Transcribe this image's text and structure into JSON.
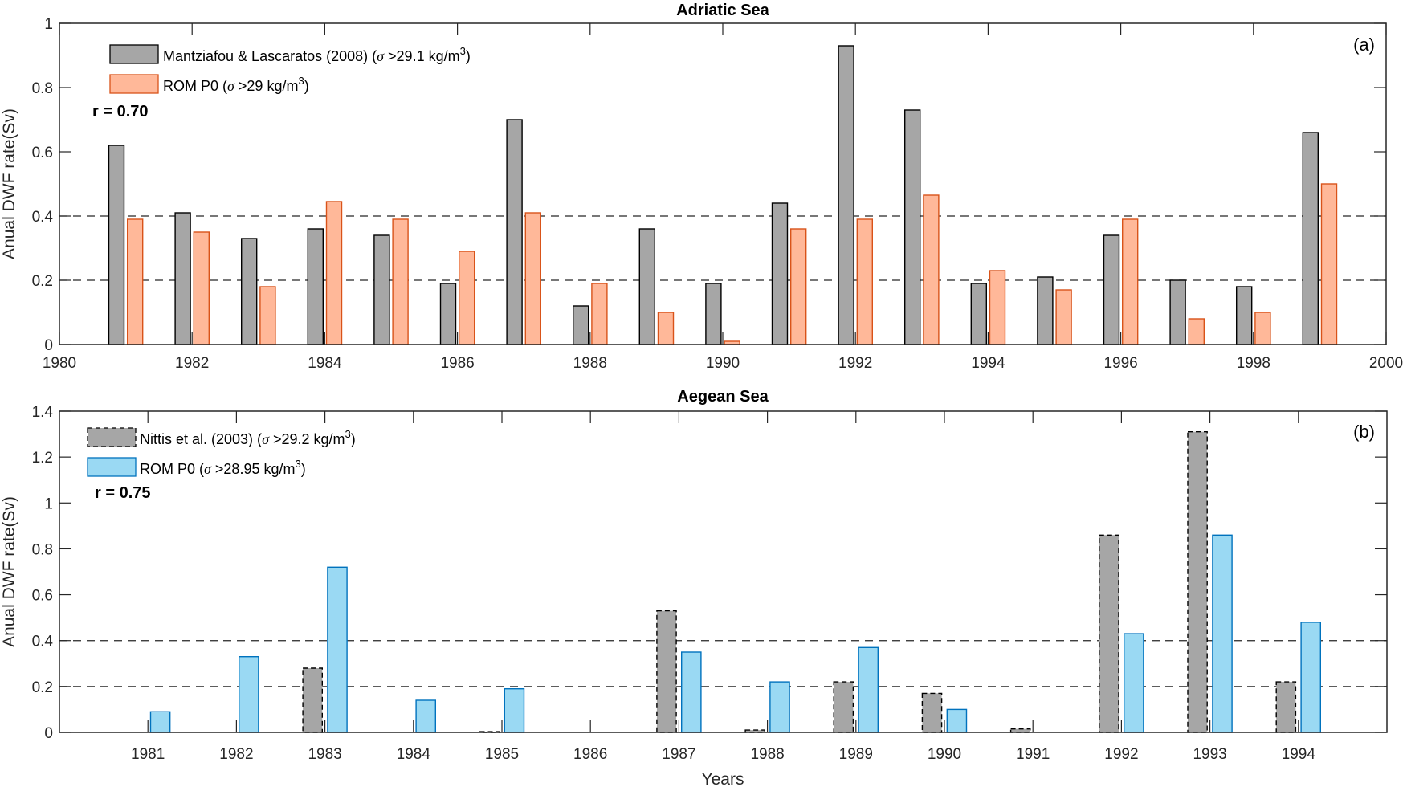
{
  "chart_data": [
    {
      "type": "bar",
      "panel_label": "(a)",
      "title": "Adriatic Sea",
      "xlabel": "",
      "ylabel": "Anual DWF rate(Sv)",
      "xlim": [
        1980,
        2000
      ],
      "ylim": [
        0,
        1
      ],
      "xticks": [
        1980,
        1982,
        1984,
        1986,
        1988,
        1990,
        1992,
        1994,
        1996,
        1998,
        2000
      ],
      "yticks": [
        0,
        0.2,
        0.4,
        0.6,
        0.8,
        1
      ],
      "ytick_labels": [
        "0",
        "0.2",
        "0.4",
        "0.6",
        "0.8",
        "1"
      ],
      "reference_lines": [
        0.2,
        0.4
      ],
      "correlation_text": "r = 0.70",
      "legend_position": "top-left",
      "categories": [
        1981,
        1982,
        1983,
        1984,
        1985,
        1986,
        1987,
        1988,
        1989,
        1990,
        1991,
        1992,
        1993,
        1994,
        1995,
        1996,
        1997,
        1998,
        1999
      ],
      "series": [
        {
          "name": "Mantziafou & Lascaratos (2008) (σ >29.1 kg/m³)",
          "label_main": "Mantziafou & Lascaratos (2008) (",
          "label_sigma": "σ",
          "label_rest": " >29.1 kg/m",
          "label_sup": "3",
          "label_end": ")",
          "fill": "#a6a6a6",
          "stroke": "#000000",
          "dashed": false,
          "values": [
            0.62,
            0.41,
            0.33,
            0.36,
            0.34,
            0.19,
            0.7,
            0.12,
            0.36,
            0.19,
            0.44,
            0.93,
            0.73,
            0.19,
            0.21,
            0.34,
            0.2,
            0.18,
            0.66
          ]
        },
        {
          "name": "ROM P0 (σ >29 kg/m³)",
          "label_main": "ROM P0 (",
          "label_sigma": "σ",
          "label_rest": " >29 kg/m",
          "label_sup": "3",
          "label_end": ")",
          "fill": "#ffb899",
          "stroke": "#d95319",
          "dashed": false,
          "values": [
            0.39,
            0.35,
            0.18,
            0.445,
            0.39,
            0.29,
            0.41,
            0.19,
            0.1,
            0.01,
            0.36,
            0.39,
            0.465,
            0.23,
            0.17,
            0.39,
            0.08,
            0.1,
            0.5
          ]
        }
      ]
    },
    {
      "type": "bar",
      "panel_label": "(b)",
      "title": "Aegean Sea",
      "xlabel": "Years",
      "ylabel": "Anual DWF rate(Sv)",
      "xlim": [
        1980,
        1995
      ],
      "ylim": [
        0,
        1.4
      ],
      "xticks": [
        1981,
        1982,
        1983,
        1984,
        1985,
        1986,
        1987,
        1988,
        1989,
        1990,
        1991,
        1992,
        1993,
        1994
      ],
      "yticks": [
        0,
        0.2,
        0.4,
        0.6,
        0.8,
        1,
        1.2,
        1.4
      ],
      "ytick_labels": [
        "0",
        "0.2",
        "0.4",
        "0.6",
        "0.8",
        "1",
        "1.2",
        "1.4"
      ],
      "reference_lines": [
        0.2,
        0.4
      ],
      "correlation_text": "r = 0.75",
      "legend_position": "top-left",
      "categories": [
        1981,
        1982,
        1983,
        1984,
        1985,
        1986,
        1987,
        1988,
        1989,
        1990,
        1991,
        1992,
        1993,
        1994
      ],
      "series": [
        {
          "name": "Nittis et al. (2003) (σ >29.2 kg/m³)",
          "label_main": "Nittis et al. (2003) (",
          "label_sigma": "σ",
          "label_rest": " >29.2 kg/m",
          "label_sup": "3",
          "label_end": ")",
          "fill": "#a6a6a6",
          "stroke": "#000000",
          "dashed": true,
          "values": [
            0,
            0,
            0.28,
            0,
            0.003,
            0,
            0.53,
            0.01,
            0.22,
            0.17,
            0.015,
            0.86,
            1.31,
            0.22
          ]
        },
        {
          "name": "ROM P0 (σ >28.95 kg/m³)",
          "label_main": "ROM P0 (",
          "label_sigma": "σ",
          "label_rest": " >28.95 kg/m",
          "label_sup": "3",
          "label_end": ")",
          "fill": "#9ad9f3",
          "stroke": "#0072bd",
          "dashed": false,
          "values": [
            0.09,
            0.33,
            0.72,
            0.14,
            0.19,
            0,
            0.35,
            0.22,
            0.37,
            0.1,
            0,
            0.43,
            0.86,
            0.48
          ]
        }
      ]
    }
  ]
}
